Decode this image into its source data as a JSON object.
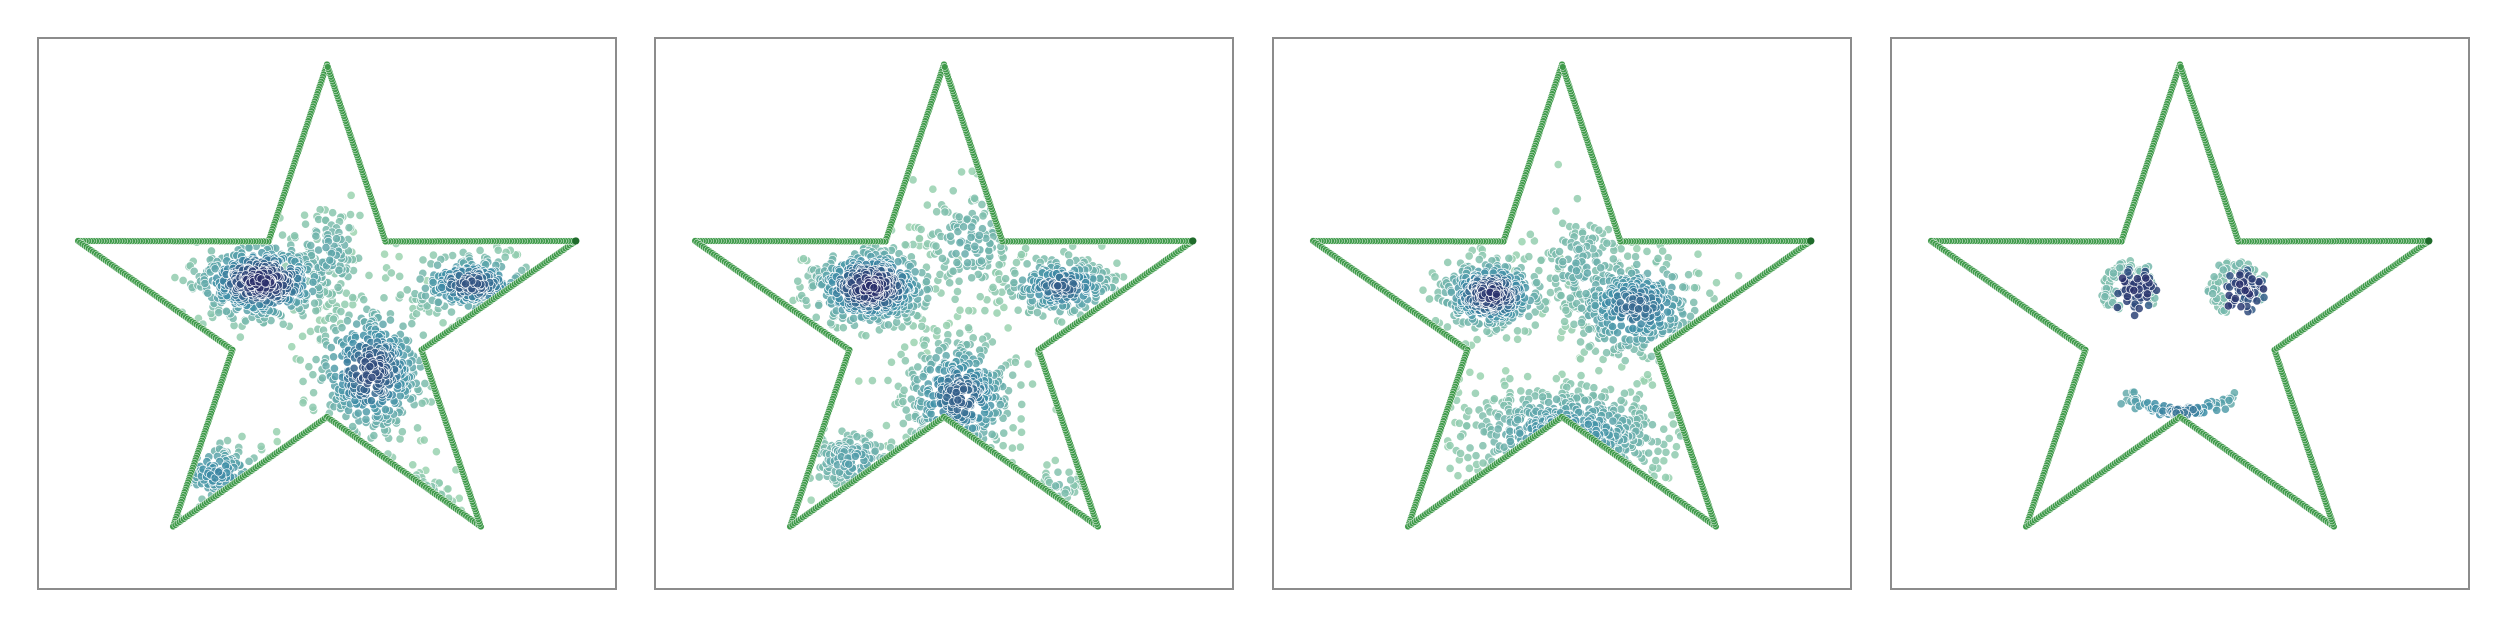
{
  "figure": {
    "panel_count": 4,
    "colors": {
      "star_outline": "#3f9a4a",
      "star_vertex": "#1f6b2b",
      "frame": "#8c8c8c",
      "density_low": "#9fd6b0",
      "density_mid": "#3f8fa8",
      "density_high": "#2a2f6b"
    }
  },
  "chart_data": [
    {
      "type": "scatter",
      "title": "",
      "xlabel": "",
      "ylabel": "",
      "xlim": [
        -1.1,
        1.1
      ],
      "ylim": [
        -1.05,
        1.1
      ],
      "grid": false,
      "axes_ticks": false,
      "star_outline": {
        "outer_radius": 1.0,
        "inner_radius": 0.38,
        "points": 5
      },
      "clusters": [
        {
          "name": "",
          "center": [
            -0.25,
            0.15
          ],
          "spread": [
            0.13,
            0.08
          ],
          "count": 520,
          "density": 1.0
        },
        {
          "name": "",
          "center": [
            0.17,
            -0.2
          ],
          "spread": [
            0.11,
            0.13
          ],
          "count": 430,
          "density": 0.85
        },
        {
          "name": "",
          "center": [
            0.55,
            0.14
          ],
          "spread": [
            0.12,
            0.06
          ],
          "count": 260,
          "density": 0.8
        },
        {
          "name": "",
          "center": [
            -0.42,
            -0.6
          ],
          "spread": [
            0.09,
            0.07
          ],
          "count": 110,
          "density": 0.55
        },
        {
          "name": "",
          "center": [
            0.0,
            0.25
          ],
          "spread": [
            0.08,
            0.1
          ],
          "count": 120,
          "density": 0.35
        },
        {
          "name": "",
          "center": [
            0.35,
            -0.7
          ],
          "spread": [
            0.06,
            0.05
          ],
          "count": 30,
          "density": 0.2
        }
      ]
    },
    {
      "type": "scatter",
      "title": "",
      "xlabel": "",
      "ylabel": "",
      "xlim": [
        -1.1,
        1.1
      ],
      "ylim": [
        -1.05,
        1.1
      ],
      "grid": false,
      "axes_ticks": false,
      "star_outline": {
        "outer_radius": 1.0,
        "inner_radius": 0.38,
        "points": 5
      },
      "clusters": [
        {
          "name": "",
          "center": [
            -0.28,
            0.13
          ],
          "spread": [
            0.12,
            0.08
          ],
          "count": 480,
          "density": 1.0
        },
        {
          "name": "",
          "center": [
            0.06,
            -0.3
          ],
          "spread": [
            0.11,
            0.12
          ],
          "count": 380,
          "density": 0.75
        },
        {
          "name": "",
          "center": [
            0.45,
            0.13
          ],
          "spread": [
            0.11,
            0.06
          ],
          "count": 230,
          "density": 0.75
        },
        {
          "name": "",
          "center": [
            -0.35,
            -0.55
          ],
          "spread": [
            0.1,
            0.07
          ],
          "count": 130,
          "density": 0.4
        },
        {
          "name": "",
          "center": [
            0.1,
            0.3
          ],
          "spread": [
            0.1,
            0.12
          ],
          "count": 150,
          "density": 0.3
        },
        {
          "name": "",
          "center": [
            0.45,
            -0.65
          ],
          "spread": [
            0.05,
            0.05
          ],
          "count": 30,
          "density": 0.2
        }
      ]
    },
    {
      "type": "scatter",
      "title": "",
      "xlabel": "",
      "ylabel": "",
      "xlim": [
        -1.1,
        1.1
      ],
      "ylim": [
        -1.05,
        1.1
      ],
      "grid": false,
      "axes_ticks": false,
      "star_outline": {
        "outer_radius": 1.0,
        "inner_radius": 0.38,
        "points": 5
      },
      "clusters": [
        {
          "name": "",
          "center": [
            -0.27,
            0.1
          ],
          "spread": [
            0.1,
            0.07
          ],
          "count": 400,
          "density": 0.95
        },
        {
          "name": "",
          "center": [
            0.28,
            0.05
          ],
          "spread": [
            0.13,
            0.1
          ],
          "count": 380,
          "density": 0.7
        },
        {
          "name": "",
          "center": [
            0.02,
            -0.45
          ],
          "spread": [
            0.2,
            0.1
          ],
          "count": 420,
          "density": 0.55
        },
        {
          "name": "",
          "center": [
            0.08,
            0.2
          ],
          "spread": [
            0.1,
            0.12
          ],
          "count": 160,
          "density": 0.3
        }
      ]
    },
    {
      "type": "scatter",
      "title": "",
      "xlabel": "",
      "ylabel": "",
      "xlim": [
        -1.1,
        1.1
      ],
      "ylim": [
        -1.05,
        1.1
      ],
      "grid": false,
      "axes_ticks": false,
      "star_outline": {
        "outer_radius": 1.0,
        "inner_radius": 0.38,
        "points": 5
      },
      "face": {
        "eyes": [
          {
            "center": [
              -0.19,
              0.12
            ],
            "ring_radius": 0.09,
            "core_spread": 0.035,
            "count": 160
          },
          {
            "center": [
              0.22,
              0.12
            ],
            "ring_radius": 0.09,
            "core_spread": 0.035,
            "count": 160
          }
        ],
        "smile": {
          "center": [
            0.0,
            -0.3
          ],
          "half_width": 0.2,
          "depth": 0.06,
          "count": 120
        }
      }
    }
  ]
}
